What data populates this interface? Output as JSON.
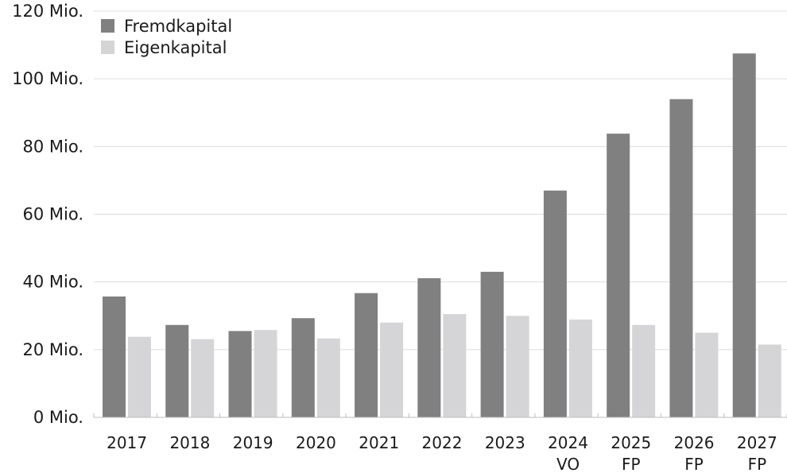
{
  "chart_data": {
    "type": "bar",
    "categories": [
      [
        "2017"
      ],
      [
        "2018"
      ],
      [
        "2019"
      ],
      [
        "2020"
      ],
      [
        "2021"
      ],
      [
        "2022"
      ],
      [
        "2023"
      ],
      [
        "2024",
        "VO"
      ],
      [
        "2025",
        "FP"
      ],
      [
        "2026",
        "FP"
      ],
      [
        "2027",
        "FP"
      ]
    ],
    "series": [
      {
        "name": "Fremdkapital",
        "color": "#808080",
        "values": [
          35.7,
          27.3,
          25.5,
          29.3,
          36.7,
          41.1,
          43.0,
          67.0,
          83.8,
          94.0,
          107.5
        ]
      },
      {
        "name": "Eigenkapital",
        "color": "#d5d5d7",
        "values": [
          23.8,
          23.1,
          25.8,
          23.3,
          28.0,
          30.5,
          30.0,
          28.9,
          27.3,
          25.0,
          21.5
        ]
      }
    ],
    "y_ticks": [
      "0 Mio.",
      "20 Mio.",
      "40 Mio.",
      "60 Mio.",
      "80 Mio.",
      "100 Mio.",
      "120 Mio."
    ],
    "ylim": [
      0,
      120
    ],
    "ystep": 20,
    "grid": true,
    "legend_position": "top-left",
    "title": "",
    "xlabel": "",
    "ylabel": ""
  }
}
